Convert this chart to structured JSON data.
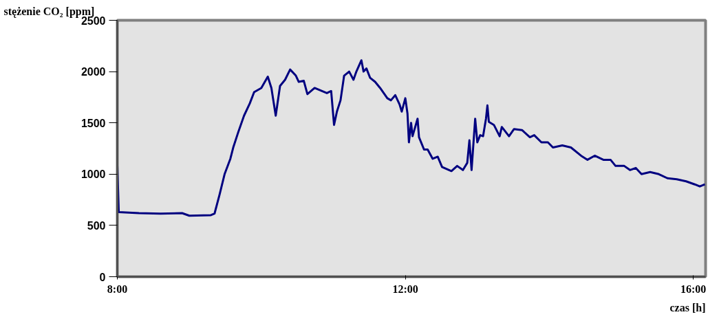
{
  "chart_data": {
    "type": "line",
    "ylabel": "stężenie CO₂ [ppm]",
    "xlabel": "czas [h]",
    "x": [
      8.0,
      8.02,
      8.3,
      8.6,
      8.9,
      9.0,
      9.3,
      9.35,
      9.42,
      9.49,
      9.57,
      9.61,
      9.68,
      9.76,
      9.84,
      9.9,
      10.0,
      10.09,
      10.14,
      10.2,
      10.26,
      10.33,
      10.4,
      10.48,
      10.52,
      10.59,
      10.64,
      10.74,
      10.91,
      10.97,
      11.01,
      11.05,
      11.1,
      11.15,
      11.22,
      11.28,
      11.32,
      11.39,
      11.42,
      11.46,
      11.51,
      11.58,
      11.65,
      11.75,
      11.8,
      11.86,
      11.92,
      11.95,
      12.0,
      12.03,
      12.05,
      12.08,
      12.1,
      12.17,
      12.19,
      12.26,
      12.31,
      12.38,
      12.45,
      12.51,
      12.64,
      12.72,
      12.8,
      12.86,
      12.89,
      12.92,
      12.97,
      13.0,
      13.04,
      13.08,
      13.12,
      13.14,
      13.16,
      13.23,
      13.31,
      13.34,
      13.44,
      13.51,
      13.62,
      13.73,
      13.79,
      13.89,
      13.98,
      14.05,
      14.18,
      14.3,
      14.44,
      14.53,
      14.63,
      14.75,
      14.85,
      14.92,
      15.04,
      15.12,
      15.2,
      15.28,
      15.4,
      15.52,
      15.64,
      15.77,
      15.9,
      16.02,
      16.09,
      16.16
    ],
    "series": [
      {
        "color": "#000080",
        "values": [
          1090,
          630,
          620,
          615,
          620,
          595,
          600,
          615,
          800,
          1000,
          1150,
          1260,
          1410,
          1570,
          1690,
          1800,
          1840,
          1950,
          1840,
          1570,
          1860,
          1920,
          2020,
          1960,
          1900,
          1910,
          1780,
          1840,
          1790,
          1810,
          1480,
          1610,
          1720,
          1960,
          2000,
          1920,
          2000,
          2110,
          2000,
          2030,
          1940,
          1900,
          1840,
          1740,
          1720,
          1770,
          1680,
          1610,
          1740,
          1590,
          1310,
          1500,
          1370,
          1540,
          1360,
          1240,
          1240,
          1150,
          1170,
          1070,
          1030,
          1080,
          1040,
          1110,
          1330,
          1040,
          1540,
          1310,
          1380,
          1370,
          1540,
          1670,
          1510,
          1480,
          1370,
          1460,
          1370,
          1440,
          1430,
          1360,
          1380,
          1310,
          1310,
          1260,
          1280,
          1260,
          1180,
          1140,
          1180,
          1140,
          1140,
          1080,
          1080,
          1040,
          1060,
          1000,
          1020,
          1000,
          960,
          950,
          930,
          900,
          880,
          900
        ]
      }
    ],
    "xlim": [
      8,
      16.17
    ],
    "ylim": [
      0,
      2500
    ],
    "xticks": [
      {
        "value": 8,
        "label": "8:00"
      },
      {
        "value": 12,
        "label": "12:00"
      },
      {
        "value": 16,
        "label": "16:00"
      }
    ],
    "yticks": [
      0,
      500,
      1000,
      1500,
      2000,
      2500
    ],
    "grid": false,
    "marker": "none",
    "line_style": "solid"
  }
}
